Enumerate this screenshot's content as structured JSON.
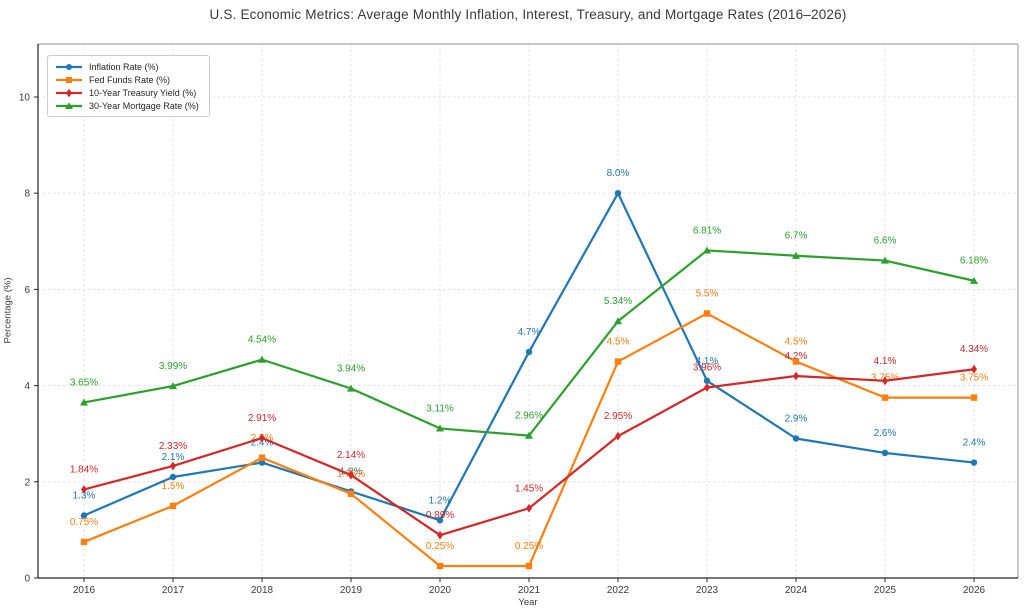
{
  "chart_data": {
    "type": "line",
    "title": "U.S. Economic Metrics: Average Monthly Inflation, Interest, Treasury, and Mortgage Rates (2016–2026)",
    "xlabel": "Year",
    "ylabel": "Percentage (%)",
    "categories": [
      "2016",
      "2017",
      "2018",
      "2019",
      "2020",
      "2021",
      "2022",
      "2023",
      "2024",
      "2025",
      "2026"
    ],
    "yticks": [
      0,
      2,
      4,
      6,
      8,
      10
    ],
    "ylim": [
      0,
      11.1
    ],
    "grid": "dashed",
    "legend_position": "upper left",
    "series": [
      {
        "name": "Inflation Rate (%)",
        "color": "#1f77b4",
        "marker": "circle",
        "values": [
          1.3,
          2.1,
          2.4,
          1.8,
          1.2,
          4.7,
          8.0,
          4.1,
          2.9,
          2.6,
          2.4
        ],
        "labels": [
          "1.3%",
          "2.1%",
          "2.4%",
          "1.8%",
          "1.2%",
          "4.7%",
          "8.0%",
          "4.1%",
          "2.9%",
          "2.6%",
          "2.4%"
        ]
      },
      {
        "name": "Fed Funds Rate (%)",
        "color": "#ff7f0e",
        "marker": "square",
        "values": [
          0.75,
          1.5,
          2.5,
          1.75,
          0.25,
          0.25,
          4.5,
          5.5,
          4.5,
          3.75,
          3.75
        ],
        "labels": [
          "0.75%",
          "1.5%",
          "2.5%",
          "1.75%",
          "0.25%",
          "0.25%",
          "4.5%",
          "5.5%",
          "4.5%",
          "3.75%",
          "3.75%"
        ]
      },
      {
        "name": "10-Year Treasury Yield (%)",
        "color": "#d62728",
        "marker": "diamond",
        "values": [
          1.84,
          2.33,
          2.91,
          2.14,
          0.89,
          1.45,
          2.95,
          3.96,
          4.2,
          4.1,
          4.34
        ],
        "labels": [
          "1.84%",
          "2.33%",
          "2.91%",
          "2.14%",
          "0.89%",
          "1.45%",
          "2.95%",
          "3.96%",
          "4.2%",
          "4.1%",
          "4.34%"
        ]
      },
      {
        "name": "30-Year Mortgage Rate (%)",
        "color": "#2ca02c",
        "marker": "triangle",
        "values": [
          3.65,
          3.99,
          4.54,
          3.94,
          3.11,
          2.96,
          5.34,
          6.81,
          6.7,
          6.6,
          6.18
        ],
        "labels": [
          "3.65%",
          "3.99%",
          "4.54%",
          "3.94%",
          "3.11%",
          "2.96%",
          "5.34%",
          "6.81%",
          "6.7%",
          "6.6%",
          "6.18%"
        ]
      }
    ]
  }
}
